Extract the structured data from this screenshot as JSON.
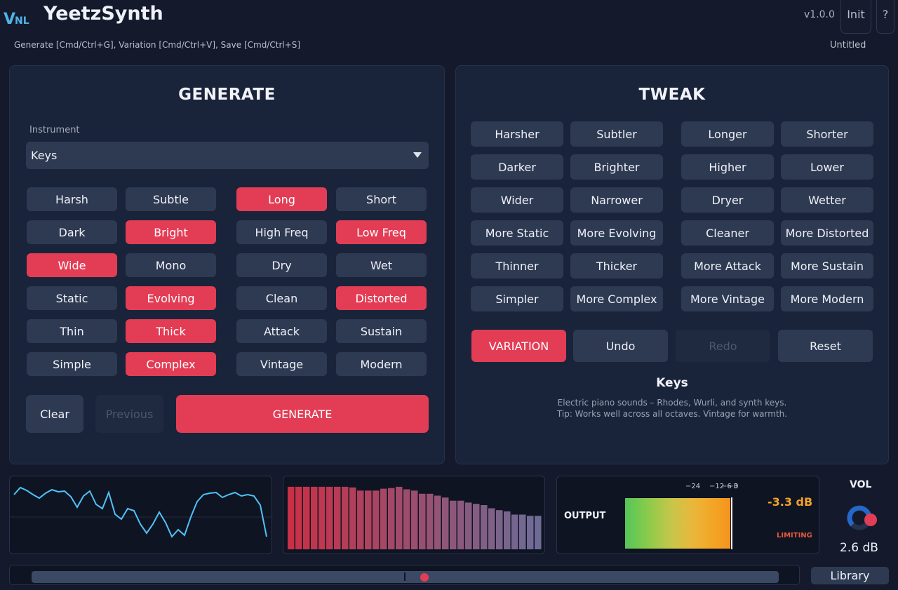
{
  "app": {
    "logo_text": "VNL",
    "title": "YeetzSynth",
    "shortcuts": "Generate [Cmd/Ctrl+G], Variation [Cmd/Ctrl+V], Save [Cmd/Ctrl+S]",
    "version": "v1.0.0",
    "init_label": "Init",
    "help_label": "?",
    "preset_name": "Untitled"
  },
  "generate": {
    "title": "GENERATE",
    "instrument_label": "Instrument",
    "instrument_value": "Keys",
    "chips": [
      {
        "label": "Harsh",
        "on": false
      },
      {
        "label": "Subtle",
        "on": false
      },
      {
        "label": "Long",
        "on": true
      },
      {
        "label": "Short",
        "on": false
      },
      {
        "label": "Dark",
        "on": false
      },
      {
        "label": "Bright",
        "on": true
      },
      {
        "label": "High Freq",
        "on": false
      },
      {
        "label": "Low Freq",
        "on": true
      },
      {
        "label": "Wide",
        "on": true
      },
      {
        "label": "Mono",
        "on": false
      },
      {
        "label": "Dry",
        "on": false
      },
      {
        "label": "Wet",
        "on": false
      },
      {
        "label": "Static",
        "on": false
      },
      {
        "label": "Evolving",
        "on": true
      },
      {
        "label": "Clean",
        "on": false
      },
      {
        "label": "Distorted",
        "on": true
      },
      {
        "label": "Thin",
        "on": false
      },
      {
        "label": "Thick",
        "on": true
      },
      {
        "label": "Attack",
        "on": false
      },
      {
        "label": "Sustain",
        "on": false
      },
      {
        "label": "Simple",
        "on": false
      },
      {
        "label": "Complex",
        "on": true
      },
      {
        "label": "Vintage",
        "on": false
      },
      {
        "label": "Modern",
        "on": false
      }
    ],
    "clear_label": "Clear",
    "previous_label": "Previous",
    "generate_label": "GENERATE"
  },
  "tweak": {
    "title": "TWEAK",
    "buttons": [
      "Harsher",
      "Subtler",
      "Longer",
      "Shorter",
      "Darker",
      "Brighter",
      "Higher",
      "Lower",
      "Wider",
      "Narrower",
      "Dryer",
      "Wetter",
      "More Static",
      "More Evolving",
      "Cleaner",
      "More Distorted",
      "Thinner",
      "Thicker",
      "More Attack",
      "More Sustain",
      "Simpler",
      "More Complex",
      "More Vintage",
      "More Modern"
    ],
    "variation_label": "VARIATION",
    "undo_label": "Undo",
    "redo_label": "Redo",
    "reset_label": "Reset",
    "desc_title": "Keys",
    "desc_line1": "Electric piano sounds – Rhodes, Wurli, and synth keys.",
    "desc_line2": "Tip: Works well across all octaves. Vintage for warmth."
  },
  "output": {
    "label": "OUTPUT",
    "ticks": [
      "−24",
      "−12",
      "−6",
      "−3",
      "0"
    ],
    "level_db": "-3.3 dB",
    "limiting": "LIMITING",
    "meter_level": 0.95
  },
  "volume": {
    "label": "VOL",
    "value": "2.6 dB",
    "knob_level": 0.7
  },
  "library_label": "Library",
  "colors": {
    "accent": "#e33d55",
    "panel": "#19243a",
    "button": "#2e3a52",
    "waveform": "#4fc3f7",
    "readout": "#f3a32a"
  },
  "spectrum": {
    "bars": [
      0.99,
      0.99,
      0.99,
      0.99,
      0.99,
      0.99,
      0.99,
      0.99,
      0.98,
      0.93,
      0.93,
      0.93,
      0.96,
      0.97,
      0.99,
      0.95,
      0.93,
      0.88,
      0.88,
      0.85,
      0.82,
      0.77,
      0.77,
      0.74,
      0.72,
      0.7,
      0.65,
      0.62,
      0.6,
      0.55,
      0.55,
      0.53,
      0.53
    ]
  },
  "waveform": {
    "points": [
      0.2,
      0.1,
      0.14,
      0.2,
      0.25,
      0.18,
      0.13,
      0.16,
      0.15,
      0.23,
      0.38,
      0.22,
      0.15,
      0.34,
      0.4,
      0.17,
      0.48,
      0.55,
      0.4,
      0.43,
      0.62,
      0.75,
      0.62,
      0.45,
      0.6,
      0.8,
      0.7,
      0.78,
      0.52,
      0.3,
      0.2,
      0.18,
      0.17,
      0.24,
      0.2,
      0.17,
      0.22,
      0.2,
      0.22,
      0.35,
      0.8
    ]
  }
}
